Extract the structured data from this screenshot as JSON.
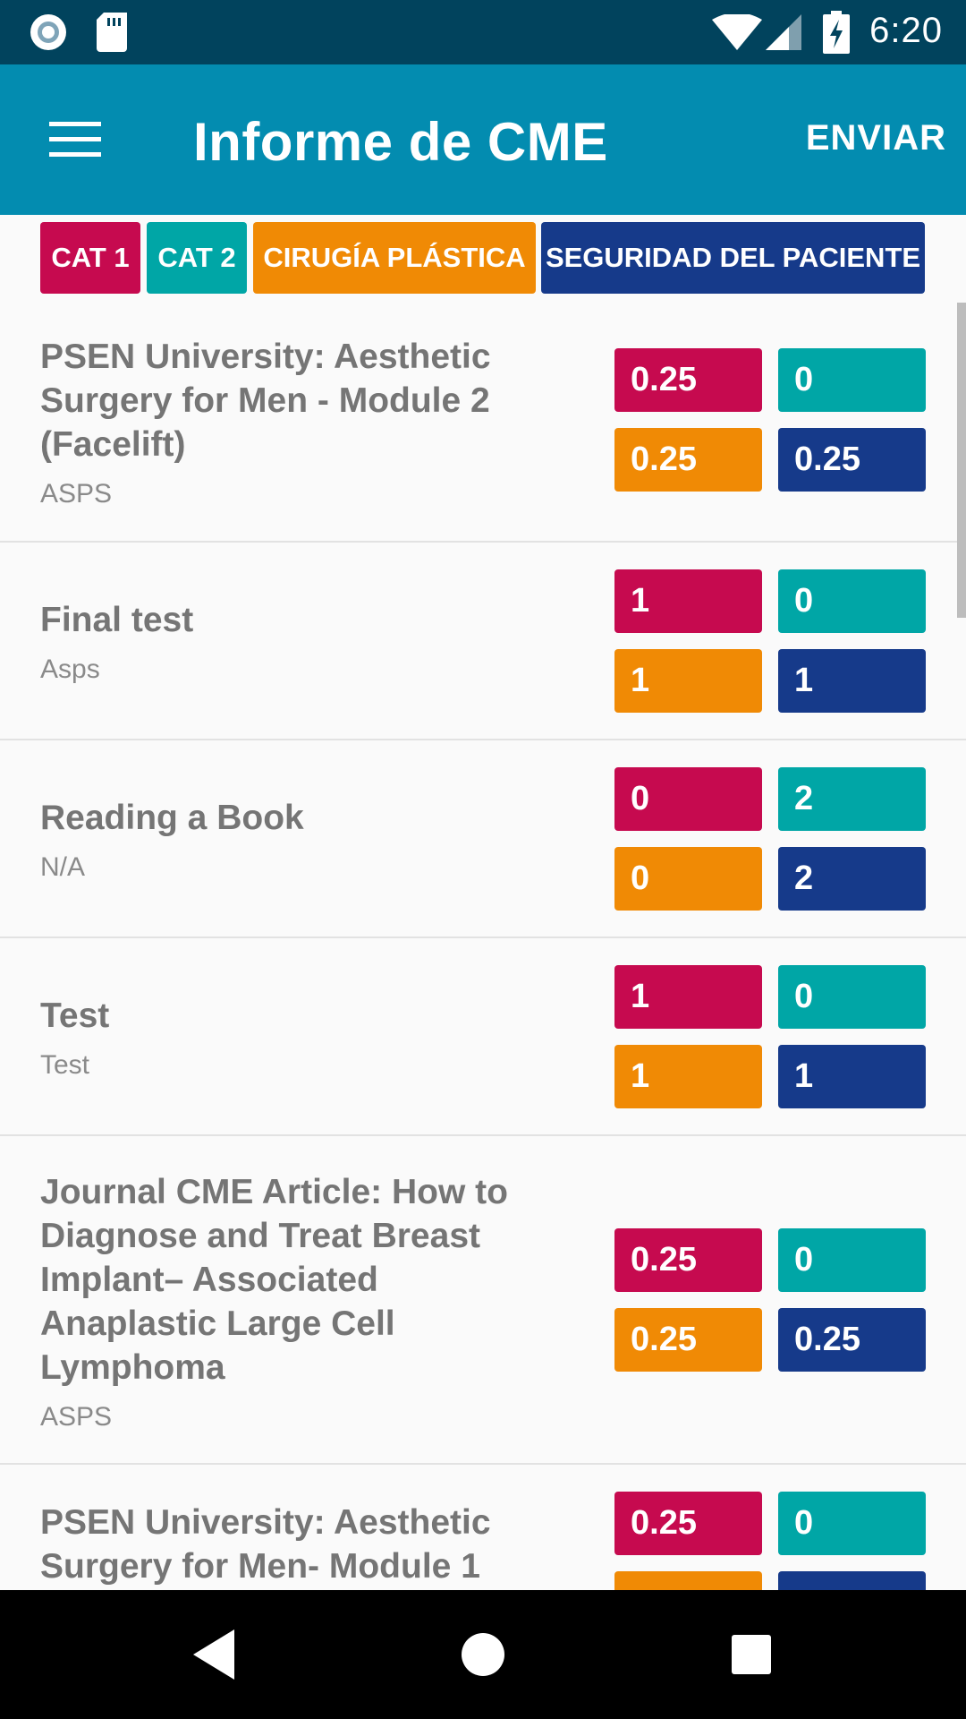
{
  "status_bar": {
    "time": "6:20",
    "icons": [
      "camera-notification-icon",
      "sd-card-icon",
      "wifi-icon",
      "cell-signal-icon",
      "battery-charging-icon"
    ]
  },
  "app_bar": {
    "title": "Informe de CME",
    "action_label": "ENVIAR",
    "menu_icon": "hamburger-menu-icon"
  },
  "legend": {
    "cat1": "CAT 1",
    "cat2": "CAT 2",
    "plastic": "CIRUGÍA PLÁSTICA",
    "patient": "SEGURIDAD DEL PACIENTE"
  },
  "colors": {
    "status_bar": "#01435d",
    "app_bar": "#038cb0",
    "cat1": "#c60a4f",
    "cat2": "#00a6a6",
    "plastic": "#f08a05",
    "patient": "#163a8a"
  },
  "items": [
    {
      "title": "PSEN University: Aesthetic Surgery for Men - Module 2 (Facelift)",
      "provider": "ASPS",
      "cat1": "0.25",
      "cat2": "0",
      "plastic": "0.25",
      "patient": "0.25"
    },
    {
      "title": "Final test",
      "provider": "Asps",
      "cat1": "1",
      "cat2": "0",
      "plastic": "1",
      "patient": "1"
    },
    {
      "title": "Reading a Book",
      "provider": "N/A",
      "cat1": "0",
      "cat2": "2",
      "plastic": "0",
      "patient": "2"
    },
    {
      "title": "Test",
      "provider": "Test",
      "cat1": "1",
      "cat2": "0",
      "plastic": "1",
      "patient": "1"
    },
    {
      "title": "Journal CME Article: How to Diagnose and Treat Breast Implant– Associated Anaplastic Large Cell Lymphoma",
      "provider": "ASPS",
      "cat1": "0.25",
      "cat2": "0",
      "plastic": "0.25",
      "patient": "0.25"
    },
    {
      "title": "PSEN University: Aesthetic Surgery for Men- Module 1",
      "provider": "",
      "cat1": "0.25",
      "cat2": "0",
      "plastic": "",
      "patient": ""
    }
  ],
  "nav_bar": {
    "icons": [
      "back-icon",
      "home-icon",
      "recents-icon"
    ]
  }
}
